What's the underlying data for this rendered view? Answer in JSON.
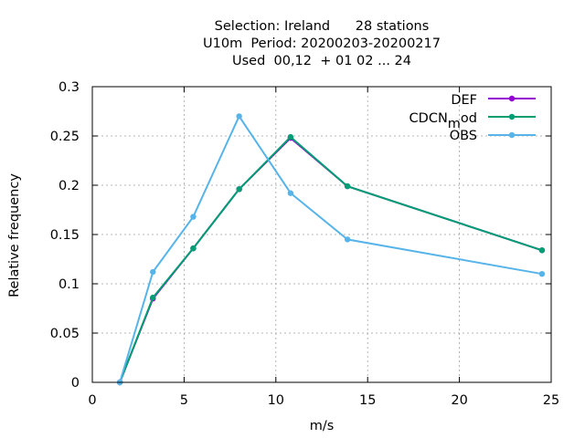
{
  "chart_data": {
    "type": "line",
    "title_lines": [
      "Selection: Ireland      28 stations",
      "U10m  Period: 20200203-20200217",
      "Used  00,12  + 01 02 ... 24"
    ],
    "xlabel": "m/s",
    "ylabel": "Relative frequency",
    "xlim": [
      0,
      25
    ],
    "ylim": [
      0,
      0.3
    ],
    "xticks": [
      0,
      5,
      10,
      15,
      20,
      25
    ],
    "yticks": [
      0,
      0.05,
      0.1,
      0.15,
      0.2,
      0.25,
      0.3
    ],
    "xtick_labels": [
      "0",
      "5",
      "10",
      "15",
      "20",
      "25"
    ],
    "ytick_labels": [
      "0",
      "0.05",
      "0.1",
      "0.15",
      "0.2",
      "0.25",
      "0.3"
    ],
    "grid": true,
    "legend_position": "top-right",
    "series": [
      {
        "name": "DEF",
        "color": "#9400d3",
        "x": [
          1.5,
          3.3,
          5.5,
          8.0,
          10.8,
          13.9,
          24.5
        ],
        "y": [
          0.0,
          0.085,
          0.136,
          0.196,
          0.248,
          0.199,
          0.134
        ]
      },
      {
        "name": "CDCN",
        "name_sub": "m",
        "name_tail": "od",
        "color": "#009e73",
        "x": [
          1.5,
          3.3,
          5.5,
          8.0,
          10.8,
          13.9,
          24.5
        ],
        "y": [
          0.0,
          0.086,
          0.136,
          0.196,
          0.249,
          0.199,
          0.134
        ]
      },
      {
        "name": "OBS",
        "color": "#56b4e9",
        "x": [
          1.5,
          3.3,
          5.5,
          8.0,
          10.8,
          13.9,
          24.5
        ],
        "y": [
          0.0,
          0.112,
          0.168,
          0.27,
          0.192,
          0.145,
          0.11
        ]
      }
    ]
  }
}
